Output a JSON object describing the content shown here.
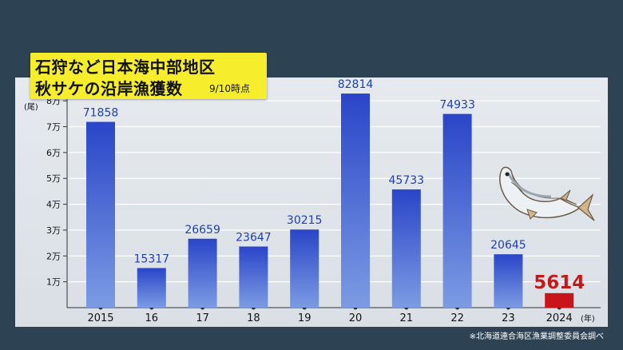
{
  "chart_data": {
    "type": "bar",
    "title": [
      "石狩など日本海中部地区",
      "秋サケの沿岸漁獲数"
    ],
    "subtitle": "9/10時点",
    "y_unit": "(尾)",
    "x_unit": "(年)",
    "categories": [
      "2015",
      "16",
      "17",
      "18",
      "19",
      "20",
      "21",
      "22",
      "23",
      "2024"
    ],
    "values": [
      71858,
      15317,
      26659,
      23647,
      30215,
      82814,
      45733,
      74933,
      20645,
      5614
    ],
    "value_labels": [
      "71858",
      "15317",
      "26659",
      "23647",
      "30215",
      "82814",
      "45733",
      "74933",
      "20645",
      "5614"
    ],
    "highlight_index": 9,
    "yticks": [
      {
        "value": 10000,
        "label": "1万"
      },
      {
        "value": 20000,
        "label": "2万"
      },
      {
        "value": 30000,
        "label": "3万"
      },
      {
        "value": 40000,
        "label": "4万"
      },
      {
        "value": 50000,
        "label": "5万"
      },
      {
        "value": 60000,
        "label": "6万"
      },
      {
        "value": 70000,
        "label": "7万"
      },
      {
        "value": 80000,
        "label": "8万"
      }
    ],
    "ylim": [
      0,
      85000
    ],
    "grid": true,
    "colors": {
      "bar_top": "#2a45c8",
      "bar_bottom": "#7c9be3",
      "highlight_bar": "#c8141a",
      "label": "#1f3fb0",
      "highlight_label": "#c11a1a",
      "grid": "#ffffff",
      "title_box": "#f6ee2c",
      "background": "#2d4353"
    },
    "icon": "salmon-illustration"
  },
  "footnote": "※北海道連合海区漁業調整委員会調べ"
}
